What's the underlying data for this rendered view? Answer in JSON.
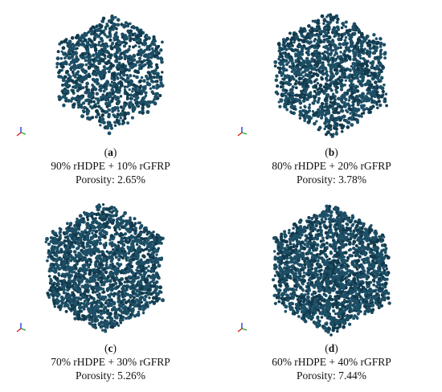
{
  "panels": [
    {
      "id": "a",
      "label_open": "(",
      "label_letter": "a",
      "label_close": ")",
      "composition": "90% rHDPE + 10% rGFRP",
      "porosity": "Porosity: 2.65%",
      "porosity_value": 2.65
    },
    {
      "id": "b",
      "label_open": "(",
      "label_letter": "b",
      "label_close": ")",
      "composition": "80% rHDPE + 20% rGFRP",
      "porosity": "Porosity: 3.78%",
      "porosity_value": 3.78
    },
    {
      "id": "c",
      "label_open": "(",
      "label_letter": "c",
      "label_close": ")",
      "composition": "70% rHDPE + 30% rGFRP",
      "porosity": "Porosity: 5.26%",
      "porosity_value": 5.26
    },
    {
      "id": "d",
      "label_open": "(",
      "label_letter": "d",
      "label_close": ")",
      "composition": "60% rHDPE + 40% rGFRP",
      "porosity": "Porosity: 7.44%",
      "porosity_value": 7.44
    }
  ],
  "colors": {
    "particle": "#1d4f66",
    "particle_dark": "#123a4d",
    "axis_x": "#d62020",
    "axis_y": "#2aa52a",
    "axis_z": "#1f3fd6"
  },
  "icons": {
    "axes": "xyz-axis-triad-icon"
  }
}
